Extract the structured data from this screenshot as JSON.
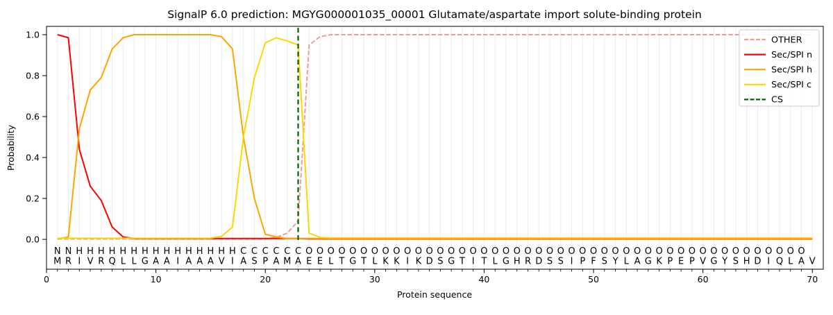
{
  "chart_data": {
    "type": "line",
    "title": "SignalP 6.0 prediction: MGYG000001035_00001 Glutamate/aspartate import solute-binding protein",
    "xlabel": "Protein sequence",
    "ylabel": "Probability",
    "xlim": [
      0,
      71
    ],
    "ylim": [
      0,
      1.05
    ],
    "x_ticks": [
      0,
      10,
      20,
      30,
      40,
      50,
      60,
      70
    ],
    "y_ticks": [
      0.0,
      0.2,
      0.4,
      0.6,
      0.8,
      1.0
    ],
    "grid": "vertical gridline at every residue position 1-70",
    "legend_position": "upper right",
    "x_start": 1,
    "series": [
      {
        "name": "OTHER",
        "style": "dashed",
        "color": "#f59a9a",
        "values": [
          0.002,
          0.002,
          0.002,
          0.002,
          0.002,
          0.002,
          0.002,
          0.002,
          0.002,
          0.002,
          0.002,
          0.002,
          0.002,
          0.002,
          0.002,
          0.002,
          0.002,
          0.002,
          0.002,
          0.002,
          0.01,
          0.03,
          0.09,
          0.95,
          0.99,
          1,
          1,
          1,
          1,
          1,
          1,
          1,
          1,
          1,
          1,
          1,
          1,
          1,
          1,
          1,
          1,
          1,
          1,
          1,
          1,
          1,
          1,
          1,
          1,
          1,
          1,
          1,
          1,
          1,
          1,
          1,
          1,
          1,
          1,
          1,
          1,
          1,
          1,
          1,
          1,
          1,
          1,
          1,
          1,
          1
        ]
      },
      {
        "name": "Sec/SPI n",
        "style": "solid",
        "color": "#ff0000",
        "values": [
          1,
          0.985,
          0.44,
          0.26,
          0.19,
          0.06,
          0.012,
          0.004,
          0.004,
          0.004,
          0.004,
          0.004,
          0.004,
          0.004,
          0.004,
          0.004,
          0.004,
          0.004,
          0.004,
          0.004,
          0.004,
          0.004,
          0.004,
          0.002,
          0.002,
          0.002,
          0.002,
          0.002,
          0.002,
          0.002,
          0.002,
          0.002,
          0.002,
          0.002,
          0.002,
          0.002,
          0.002,
          0.002,
          0.002,
          0.002,
          0.002,
          0.002,
          0.002,
          0.002,
          0.002,
          0.002,
          0.002,
          0.002,
          0.002,
          0.002,
          0.002,
          0.002,
          0.002,
          0.002,
          0.002,
          0.002,
          0.002,
          0.002,
          0.002,
          0.002,
          0.002,
          0.002,
          0.002,
          0.002,
          0.002,
          0.002,
          0.002,
          0.002,
          0.002,
          0.002
        ]
      },
      {
        "name": "Sec/SPI h",
        "style": "solid",
        "color": "#ffa500",
        "values": [
          0.002,
          0.012,
          0.54,
          0.73,
          0.79,
          0.93,
          0.985,
          1,
          1,
          1,
          1,
          1,
          1,
          1,
          1,
          0.99,
          0.93,
          0.5,
          0.2,
          0.025,
          0.012,
          0.004,
          0.004,
          0.004,
          0.004,
          0.004,
          0.004,
          0.004,
          0.004,
          0.004,
          0.004,
          0.004,
          0.004,
          0.004,
          0.004,
          0.004,
          0.004,
          0.004,
          0.004,
          0.004,
          0.004,
          0.004,
          0.004,
          0.004,
          0.004,
          0.004,
          0.004,
          0.004,
          0.004,
          0.004,
          0.004,
          0.004,
          0.004,
          0.004,
          0.004,
          0.004,
          0.004,
          0.004,
          0.004,
          0.004,
          0.004,
          0.004,
          0.004,
          0.004,
          0.004,
          0.004,
          0.004,
          0.004,
          0.004,
          0.004
        ]
      },
      {
        "name": "Sec/SPI c",
        "style": "solid",
        "color": "#ffd700",
        "values": [
          0.006,
          0.006,
          0.006,
          0.006,
          0.006,
          0.006,
          0.006,
          0.006,
          0.006,
          0.006,
          0.006,
          0.006,
          0.006,
          0.006,
          0.006,
          0.015,
          0.06,
          0.5,
          0.79,
          0.96,
          0.985,
          0.97,
          0.95,
          0.03,
          0.01,
          0.007,
          0.007,
          0.007,
          0.007,
          0.007,
          0.007,
          0.007,
          0.007,
          0.007,
          0.007,
          0.007,
          0.007,
          0.007,
          0.007,
          0.007,
          0.007,
          0.007,
          0.007,
          0.007,
          0.007,
          0.007,
          0.007,
          0.007,
          0.007,
          0.007,
          0.007,
          0.007,
          0.007,
          0.007,
          0.007,
          0.007,
          0.007,
          0.007,
          0.007,
          0.007,
          0.007,
          0.007,
          0.007,
          0.007,
          0.007,
          0.007,
          0.007,
          0.007,
          0.007,
          0.007
        ]
      }
    ],
    "cs_line": {
      "name": "CS",
      "x": 23,
      "style": "dashed",
      "color": "#006400"
    },
    "legend_entries": [
      "OTHER",
      "Sec/SPI n",
      "Sec/SPI h",
      "Sec/SPI c",
      "CS"
    ],
    "sequence": "MRIVRQLLGAAIAAAVIASPAMAEELTGTLKKIKDSGTITLGHRDSSIPFSYLAGKPEPVGYSHDIQLAV",
    "region_labels": "NNHHHHHHHHHHHHHHHCCCCCCOOOOOOOOOOOOOOOOOOOOOOOOOOOOOOOOOOOOOOOOOOOOOO",
    "label_colors": {
      "N": "#ff0000",
      "H": "#ffa500",
      "C": "#ffd700",
      "O": "#808080"
    },
    "sequence_color": "#1a1a1a",
    "grid_color": "#ececec",
    "axis_color": "#000000"
  }
}
